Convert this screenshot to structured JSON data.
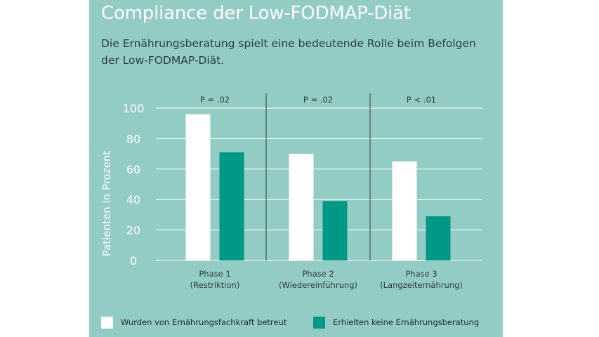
{
  "header": {
    "title": "Compliance der Low-FODMAP-Diät",
    "subtitle": "Die Ernährungsberatung spielt eine bedeutende Rolle beim Befolgen der Low-FODMAP-Diät."
  },
  "colors": {
    "panel": "#93ccc4",
    "series_1": "#ffffff",
    "series_2": "#009985",
    "text": "#2f3d3b"
  },
  "chart_data": {
    "type": "bar",
    "ylabel": "Patienten in Prozent",
    "ylim": [
      0,
      100
    ],
    "yticks": [
      0,
      20,
      40,
      60,
      80,
      100
    ],
    "grid": true,
    "categories": [
      {
        "line1": "Phase 1",
        "line2": "(Restriktion)"
      },
      {
        "line1": "Phase 2",
        "line2": "(Wiedereinführung)"
      },
      {
        "line1": "Phase 3",
        "line2": "(Langzeiternährung)"
      }
    ],
    "p_values": [
      "P = .02",
      "P = .02",
      "P < .01"
    ],
    "series": [
      {
        "name": "Wurden von Ernährungsfachkraft betreut",
        "values": [
          96,
          70,
          65
        ],
        "color": "#ffffff"
      },
      {
        "name": "Erhielten keine Ernährungsberatung",
        "values": [
          71,
          39,
          29
        ],
        "color": "#009985"
      }
    ],
    "legend_position": "bottom"
  }
}
